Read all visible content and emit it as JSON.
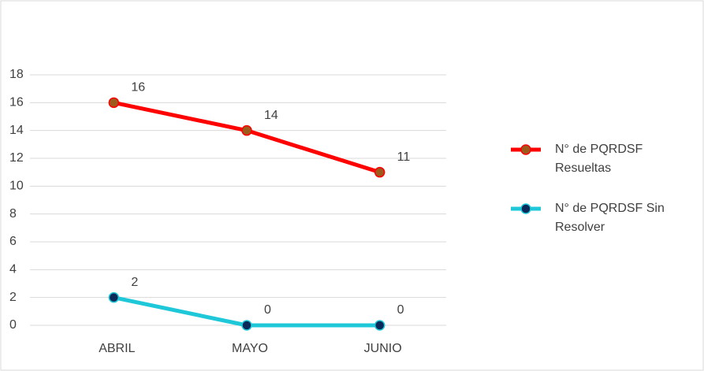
{
  "chart_data": {
    "type": "line",
    "categories": [
      "ABRIL",
      "MAYO",
      "JUNIO"
    ],
    "series": [
      {
        "name": "N° de PQRDSF Resueltas",
        "color": "#ff0000",
        "marker_color": "#9c5a1c",
        "values": [
          16,
          14,
          11
        ]
      },
      {
        "name": "N° de PQRDSF Sin Resolver",
        "color": "#1ec8d8",
        "marker_color": "#0b2a5a",
        "values": [
          2,
          0,
          0
        ]
      }
    ],
    "ylim": [
      0,
      18
    ],
    "yticks": [
      0,
      2,
      4,
      6,
      8,
      10,
      12,
      14,
      16,
      18
    ],
    "grid": true,
    "legend": "right",
    "data_labels": true
  }
}
